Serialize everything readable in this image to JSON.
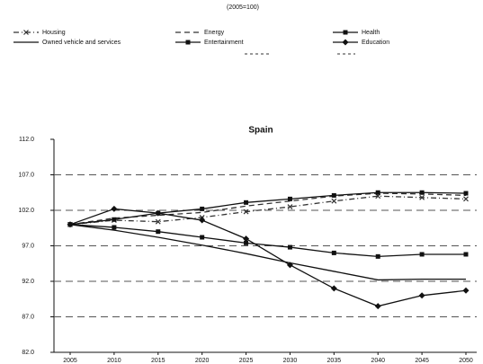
{
  "chart_data": {
    "type": "line",
    "subtitle": "(2005=100)",
    "title": "Spain",
    "categories": [
      "2005",
      "2010",
      "2015",
      "2020",
      "2025",
      "2030",
      "2035",
      "2040",
      "2045",
      "2050"
    ],
    "ylim": [
      82,
      112
    ],
    "yticks": [
      {
        "value": 82,
        "label": "82.0"
      },
      {
        "value": 87,
        "label": "87.0"
      },
      {
        "value": 92,
        "label": "92.0"
      },
      {
        "value": 97,
        "label": "97.0"
      },
      {
        "value": 102,
        "label": "102.0"
      },
      {
        "value": 107,
        "label": "107.0"
      },
      {
        "value": 112,
        "label": "112.0"
      }
    ],
    "grid": true,
    "series": [
      {
        "name": "Housing",
        "color": "#333333",
        "dash": "6 3 1 3",
        "marker": "x",
        "values": [
          100,
          100.6,
          100.4,
          101.0,
          101.8,
          102.5,
          103.3,
          104.0,
          103.8,
          103.6
        ]
      },
      {
        "name": "Energy",
        "color": "#333333",
        "dash": "6 4",
        "marker": "none",
        "values": [
          100,
          100.9,
          101.3,
          101.7,
          102.6,
          103.3,
          104.0,
          104.4,
          104.3,
          104.1
        ]
      },
      {
        "name": "Health",
        "color": "#111111",
        "dash": "",
        "marker": "square",
        "values": [
          100,
          100.7,
          101.6,
          102.2,
          103.1,
          103.6,
          104.1,
          104.5,
          104.5,
          104.4
        ]
      },
      {
        "name": "Owned vehicle and services",
        "color": "#111111",
        "dash": "",
        "marker": "none",
        "values": [
          100,
          99.2,
          98.2,
          97.1,
          95.9,
          94.6,
          93.4,
          92.2,
          92.3,
          92.3
        ]
      },
      {
        "name": "Entertainment",
        "color": "#111111",
        "dash": "",
        "marker": "square",
        "values": [
          100,
          99.6,
          99.0,
          98.2,
          97.4,
          96.8,
          96.0,
          95.5,
          95.8,
          95.8
        ]
      },
      {
        "name": "Education",
        "color": "#111111",
        "dash": "",
        "marker": "diamond",
        "values": [
          100,
          102.2,
          101.6,
          100.6,
          98.0,
          94.3,
          91.0,
          88.5,
          90.0,
          90.7
        ]
      }
    ]
  }
}
